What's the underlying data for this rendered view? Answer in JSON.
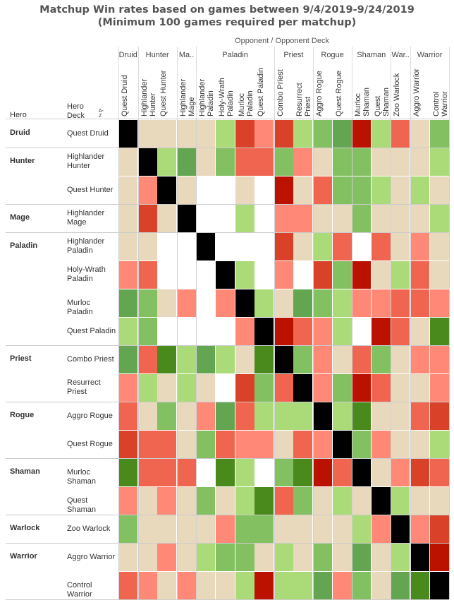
{
  "chart_data": {
    "type": "heatmap",
    "title": "Matchup Win rates based on games between 9/4/2019-9/24/2019",
    "subtitle": "(Minimum 100 games required per matchup)",
    "column_axis_title": "Opponent  /  Opponent Deck",
    "row_header_hero": "Hero",
    "row_header_deck": "Hero Deck",
    "sort_icon": "A-Z",
    "column_groups": [
      {
        "label": "Druid",
        "span": 1
      },
      {
        "label": "Hunter",
        "span": 2
      },
      {
        "label": "Ma..",
        "span": 1
      },
      {
        "label": "Paladin",
        "span": 4
      },
      {
        "label": "Priest",
        "span": 2
      },
      {
        "label": "Rogue",
        "span": 2
      },
      {
        "label": "Shaman",
        "span": 2
      },
      {
        "label": "War..",
        "span": 1
      },
      {
        "label": "Warrior",
        "span": 2
      }
    ],
    "row_groups": [
      {
        "label": "Druid",
        "span": 1
      },
      {
        "label": "Hunter",
        "span": 2
      },
      {
        "label": "Mage",
        "span": 1
      },
      {
        "label": "Paladin",
        "span": 4
      },
      {
        "label": "Priest",
        "span": 2
      },
      {
        "label": "Rogue",
        "span": 2
      },
      {
        "label": "Shaman",
        "span": 2
      },
      {
        "label": "Warlock",
        "span": 1
      },
      {
        "label": "Warrior",
        "span": 2
      }
    ],
    "col_decks": [
      "Quest Druid",
      "Highlander Hunter",
      "Quest Hunter",
      "Highlander Mage",
      "Highlander Paladin",
      "Holy-Wrath Paladin",
      "Murloc Paladin",
      "Quest Paladin",
      "Combo Priest",
      "Resurrect Priest",
      "Aggro Rogue",
      "Quest Rogue",
      "Murloc Shaman",
      "Quest Shaman",
      "Zoo Warlock",
      "Aggro Warrior",
      "Control Warrior"
    ],
    "row_decks": [
      "Quest Druid",
      "Highlander Hunter",
      "Quest Hunter",
      "Highlander Mage",
      "Highlander Paladin",
      "Holy-Wrath Paladin",
      "Murloc Paladin",
      "Quest Paladin",
      "Combo Priest",
      "Resurrect Priest",
      "Aggro Rogue",
      "Quest Rogue",
      "Murloc Shaman",
      "Quest Shaman",
      "Zoo Warlock",
      "Aggro Warrior",
      "Control Warrior"
    ],
    "color_scale": {
      "K": "#000000",
      "W": "#ffffff",
      "B": "#e8d9bd",
      "LG": "#aadb78",
      "G": "#83c062",
      "MG": "#64a552",
      "DG": "#4a8a1d",
      "LR": "#ff8876",
      "R": "#f0654f",
      "DR": "#d94128",
      "DDR": "#bb1200"
    },
    "cells": [
      [
        "K",
        "B",
        "B",
        "B",
        "B",
        "LG",
        "DR",
        "LR",
        "DR",
        "LG",
        "G",
        "MG",
        "DDR",
        "LG",
        "R",
        "B",
        "G"
      ],
      [
        "B",
        "K",
        "LG",
        "MG",
        "B",
        "G",
        "R",
        "R",
        "G",
        "LR",
        "B",
        "G",
        "G",
        "B",
        "B",
        "B",
        "LG"
      ],
      [
        "B",
        "LR",
        "K",
        "B",
        "W",
        "W",
        "B",
        "W",
        "DDR",
        "B",
        "R",
        "G",
        "G",
        "LG",
        "B",
        "LG",
        "B"
      ],
      [
        "B",
        "DR",
        "B",
        "K",
        "W",
        "W",
        "LG",
        "W",
        "LR",
        "LR",
        "B",
        "B",
        "G",
        "B",
        "B",
        "B",
        "LG"
      ],
      [
        "B",
        "B",
        "W",
        "W",
        "K",
        "W",
        "W",
        "W",
        "DR",
        "B",
        "LG",
        "R",
        "W",
        "R",
        "B",
        "LR",
        "B"
      ],
      [
        "LR",
        "R",
        "W",
        "W",
        "W",
        "K",
        "LG",
        "W",
        "LR",
        "W",
        "DR",
        "G",
        "DDR",
        "B",
        "LG",
        "R",
        "B"
      ],
      [
        "MG",
        "G",
        "B",
        "LR",
        "W",
        "LR",
        "K",
        "LG",
        "B",
        "MG",
        "G",
        "LG",
        "LR",
        "LR",
        "R",
        "R",
        "LR"
      ],
      [
        "LG",
        "G",
        "W",
        "W",
        "W",
        "W",
        "LR",
        "K",
        "DDR",
        "R",
        "LR",
        "LG",
        "W",
        "DDR",
        "R",
        "B",
        "DG"
      ],
      [
        "MG",
        "R",
        "DG",
        "LG",
        "MG",
        "LG",
        "B",
        "DG",
        "K",
        "G",
        "LR",
        "B",
        "R",
        "G",
        "B",
        "LR",
        "LR"
      ],
      [
        "LR",
        "LG",
        "B",
        "LG",
        "B",
        "W",
        "DR",
        "G",
        "R",
        "K",
        "LR",
        "G",
        "DDR",
        "R",
        "B",
        "B",
        "LR"
      ],
      [
        "R",
        "B",
        "G",
        "B",
        "LR",
        "MG",
        "R",
        "LG",
        "LG",
        "LG",
        "K",
        "LG",
        "DG",
        "B",
        "B",
        "R",
        "DR"
      ],
      [
        "DR",
        "R",
        "R",
        "B",
        "G",
        "R",
        "LR",
        "LR",
        "B",
        "R",
        "LR",
        "K",
        "G",
        "LR",
        "B",
        "B",
        "LG"
      ],
      [
        "DG",
        "R",
        "R",
        "R",
        "W",
        "DG",
        "LG",
        "W",
        "G",
        "DG",
        "DDR",
        "R",
        "K",
        "B",
        "LR",
        "DR",
        "R"
      ],
      [
        "LR",
        "B",
        "LR",
        "B",
        "G",
        "B",
        "LG",
        "DG",
        "R",
        "G",
        "B",
        "LG",
        "B",
        "K",
        "LG",
        "B",
        "B"
      ],
      [
        "G",
        "B",
        "B",
        "B",
        "B",
        "LR",
        "G",
        "G",
        "B",
        "B",
        "B",
        "B",
        "LG",
        "LR",
        "K",
        "LR",
        "DR"
      ],
      [
        "B",
        "B",
        "LR",
        "B",
        "LG",
        "G",
        "G",
        "B",
        "LG",
        "B",
        "G",
        "B",
        "MG",
        "B",
        "LG",
        "K",
        "DDR"
      ],
      [
        "R",
        "LR",
        "B",
        "LR",
        "B",
        "B",
        "LG",
        "DDR",
        "LG",
        "LG",
        "MG",
        "LR",
        "G",
        "B",
        "MG",
        "DG",
        "K"
      ]
    ]
  }
}
